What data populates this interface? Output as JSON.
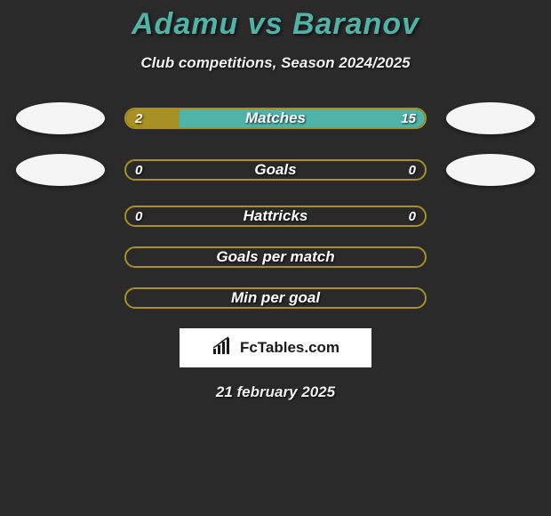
{
  "title": "Adamu vs Baranov",
  "subtitle": "Club competitions, Season 2024/2025",
  "date": "21 february 2025",
  "logo_text": "FcTables.com",
  "colors": {
    "title": "#4fb3a8",
    "bar_border": "#a89022",
    "bar_fill": "#a89022",
    "bar_alt_fill": "#4fb3a8",
    "background": "#2a2a2a",
    "text": "#ffffff"
  },
  "stats": [
    {
      "label": "Matches",
      "left_val": "2",
      "right_val": "15",
      "left_pct": 18,
      "right_pct": 82,
      "show_ovals": true,
      "show_values": true,
      "left_color": "#a89022",
      "right_color": "#4fb3a8"
    },
    {
      "label": "Goals",
      "left_val": "0",
      "right_val": "0",
      "left_pct": 0,
      "right_pct": 0,
      "show_ovals": true,
      "show_values": true,
      "left_color": "#a89022",
      "right_color": "#4fb3a8"
    },
    {
      "label": "Hattricks",
      "left_val": "0",
      "right_val": "0",
      "left_pct": 0,
      "right_pct": 0,
      "show_ovals": false,
      "show_values": true,
      "left_color": "#a89022",
      "right_color": "#4fb3a8"
    },
    {
      "label": "Goals per match",
      "left_val": "",
      "right_val": "",
      "left_pct": 0,
      "right_pct": 0,
      "show_ovals": false,
      "show_values": false,
      "left_color": "#a89022",
      "right_color": "#4fb3a8"
    },
    {
      "label": "Min per goal",
      "left_val": "",
      "right_val": "",
      "left_pct": 0,
      "right_pct": 0,
      "show_ovals": false,
      "show_values": false,
      "left_color": "#a89022",
      "right_color": "#4fb3a8"
    }
  ]
}
